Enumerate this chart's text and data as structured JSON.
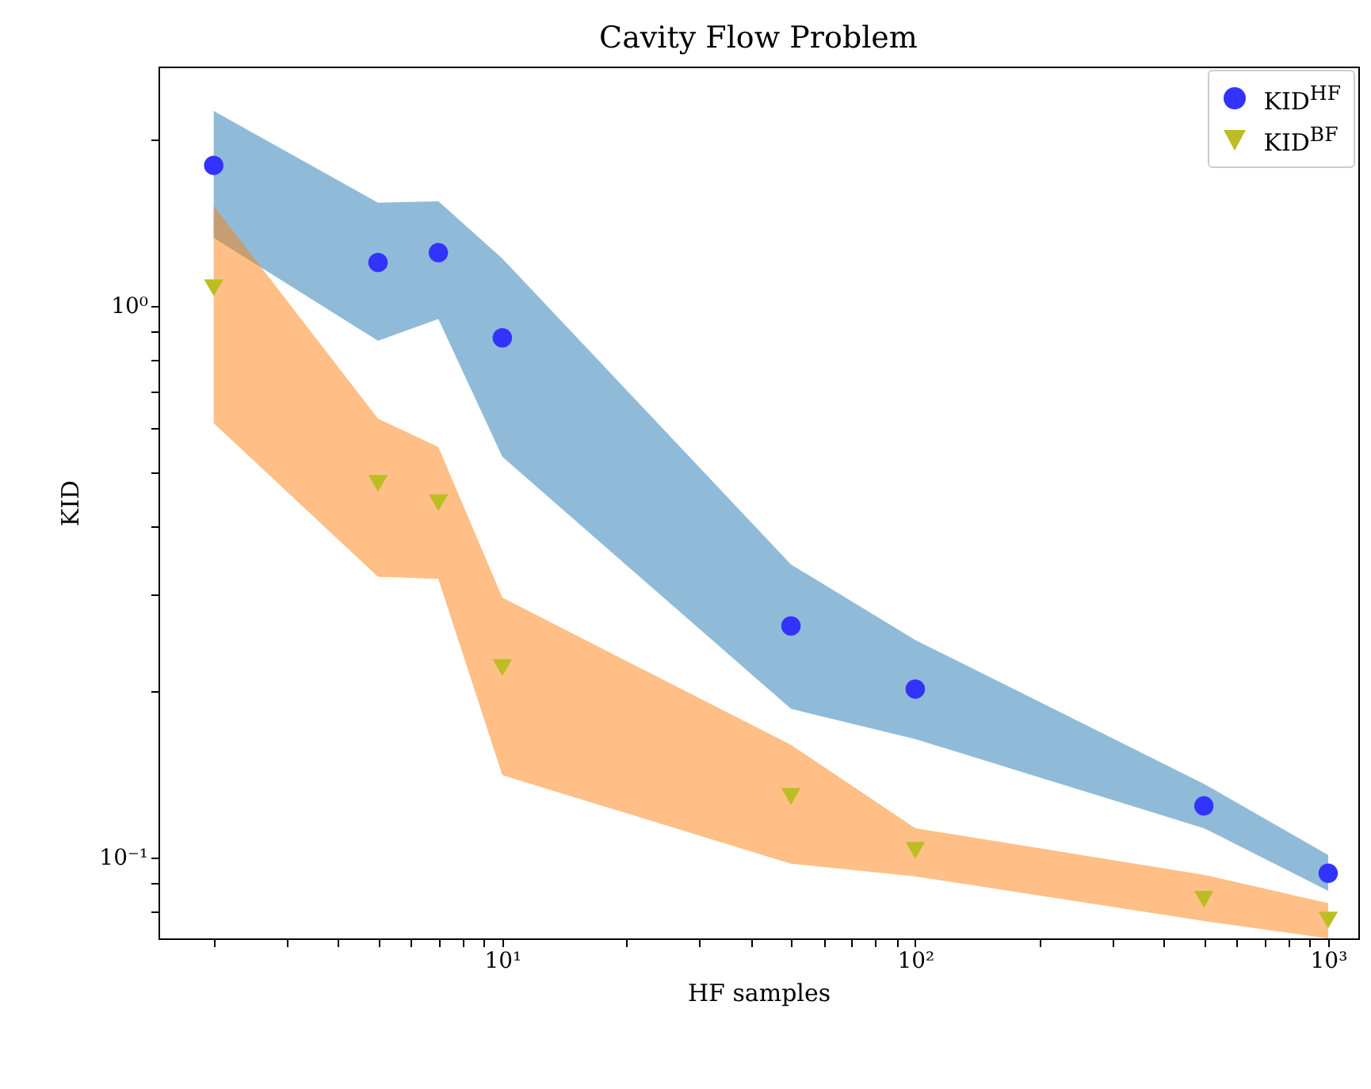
{
  "chart_data": {
    "type": "scatter",
    "title": "Cavity Flow Problem",
    "xlabel": "HF samples",
    "ylabel": "KID",
    "log": "xy",
    "grid": false,
    "legend": "top right",
    "xlim": [
      1.47,
      1183
    ],
    "ylim": [
      0.0713,
      2.72
    ],
    "xticks": [
      {
        "value": 2,
        "label": null
      },
      {
        "value": 3,
        "label": null
      },
      {
        "value": 4,
        "label": null
      },
      {
        "value": 5,
        "label": null
      },
      {
        "value": 6,
        "label": null
      },
      {
        "value": 7,
        "label": null
      },
      {
        "value": 8,
        "label": null
      },
      {
        "value": 9,
        "label": null
      },
      {
        "value": 10,
        "label": "10¹"
      },
      {
        "value": 20,
        "label": null
      },
      {
        "value": 30,
        "label": null
      },
      {
        "value": 40,
        "label": null
      },
      {
        "value": 50,
        "label": null
      },
      {
        "value": 60,
        "label": null
      },
      {
        "value": 70,
        "label": null
      },
      {
        "value": 80,
        "label": null
      },
      {
        "value": 90,
        "label": null
      },
      {
        "value": 100,
        "label": "10²"
      },
      {
        "value": 200,
        "label": null
      },
      {
        "value": 300,
        "label": null
      },
      {
        "value": 400,
        "label": null
      },
      {
        "value": 500,
        "label": null
      },
      {
        "value": 600,
        "label": null
      },
      {
        "value": 700,
        "label": null
      },
      {
        "value": 800,
        "label": null
      },
      {
        "value": 900,
        "label": null
      },
      {
        "value": 1000,
        "label": "10³"
      }
    ],
    "yticks": [
      {
        "value": 0.08,
        "label": null
      },
      {
        "value": 0.09,
        "label": null
      },
      {
        "value": 0.1,
        "label": "10⁻¹"
      },
      {
        "value": 0.2,
        "label": null
      },
      {
        "value": 0.3,
        "label": null
      },
      {
        "value": 0.4,
        "label": null
      },
      {
        "value": 0.5,
        "label": null
      },
      {
        "value": 0.6,
        "label": null
      },
      {
        "value": 0.7,
        "label": null
      },
      {
        "value": 0.8,
        "label": null
      },
      {
        "value": 0.9,
        "label": null
      },
      {
        "value": 1,
        "label": "10⁰"
      },
      {
        "value": 2,
        "label": null
      }
    ],
    "x": [
      2,
      5,
      7,
      10,
      50,
      100,
      500,
      1000
    ],
    "series": [
      {
        "name": "KID$^{HF}$",
        "color": "#3333ff",
        "marker": "circle",
        "values": [
          1.8,
          1.2,
          1.25,
          0.876,
          0.263,
          0.202,
          0.124,
          0.0936
        ],
        "lower": [
          1.33,
          0.865,
          0.948,
          0.533,
          0.186,
          0.164,
          0.113,
          0.087
        ],
        "upper": [
          2.26,
          1.54,
          1.55,
          1.22,
          0.34,
          0.248,
          0.136,
          0.101
        ]
      },
      {
        "name": "KID$^{BF}$",
        "color": "#bcbd22",
        "marker": "triangle",
        "values": [
          1.08,
          0.477,
          0.44,
          0.221,
          0.129,
          0.103,
          0.084,
          0.077
        ],
        "lower": [
          0.613,
          0.323,
          0.32,
          0.141,
          0.0974,
          0.0924,
          0.0767,
          0.0713
        ],
        "upper": [
          1.52,
          0.625,
          0.555,
          0.296,
          0.16,
          0.113,
          0.093,
          0.0826
        ]
      }
    ]
  }
}
